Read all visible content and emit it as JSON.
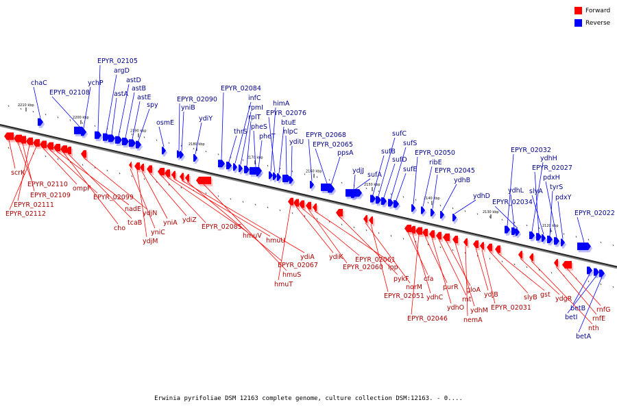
{
  "legend": {
    "forward_label": "Forward",
    "reverse_label": "Reverse",
    "forward_color": "#ff0000",
    "reverse_color": "#0000ff"
  },
  "caption": "Erwinia pyrifoliae DSM 12163 complete genome, culture collection DSM:12163. - 0....",
  "scale_ticks": [
    "2210 kbp",
    "2200 kbp",
    "2190 kbp",
    "2180 kbp",
    "2170 kbp",
    "2160 kbp",
    "2150 kbp",
    "2140 kbp",
    "2130 kbp",
    "2120 kbp"
  ],
  "genes_reverse": [
    "chaC",
    "EPYR_02108",
    "ychP",
    "EPYR_02105",
    "argD",
    "astA",
    "astD",
    "astB",
    "astE",
    "spy",
    "osmE",
    "EPYR_02090",
    "yniB",
    "ydiY",
    "EPYR_02084",
    "thrS",
    "infC",
    "rpmI",
    "rplT",
    "pheS",
    "pheT",
    "himA",
    "EPYR_02076",
    "btuE",
    "nlpC",
    "ydiU",
    "EPYR_02068",
    "EPYR_02065",
    "ppsA",
    "ydjJ",
    "sufA",
    "sufB",
    "sufC",
    "sufD",
    "sufS",
    "sufE",
    "EPYR_02050",
    "ribE",
    "EPYR_02045",
    "ydhB",
    "ydhD",
    "EPYR_02032",
    "ydhL",
    "EPYR_02034",
    "ydhH",
    "EPYR_02027",
    "slyA",
    "tyrS",
    "pdxH",
    "pdxY",
    "EPYR_02022",
    "betB",
    "betI",
    "betA"
  ],
  "genes_forward": [
    "scrK",
    "EPYR_02110",
    "EPYR_02109",
    "EPYR_02111",
    "EPYR_02112",
    "ompF",
    "EPYR_02099",
    "nadE",
    "cho",
    "tcaB",
    "ydjN",
    "yniC",
    "ydjM",
    "yniA",
    "ydiZ",
    "EPYR_02085",
    "hmuV",
    "hmuU",
    "ydiA",
    "EPYR_02067",
    "hmuS",
    "hmuT",
    "ydiK",
    "EPYR_02061",
    "EPYR_02060",
    "lpp",
    "pykF",
    "norM",
    "EPYR_02051",
    "cfa",
    "ydhC",
    "EPYR_02046",
    "purR",
    "ydhO",
    "rnt",
    "gloA",
    "ydhM",
    "nemA",
    "ydjB",
    "EPYR_02031",
    "slyB",
    "gst",
    "ydgR",
    "nth",
    "rnfE",
    "rnfG"
  ]
}
